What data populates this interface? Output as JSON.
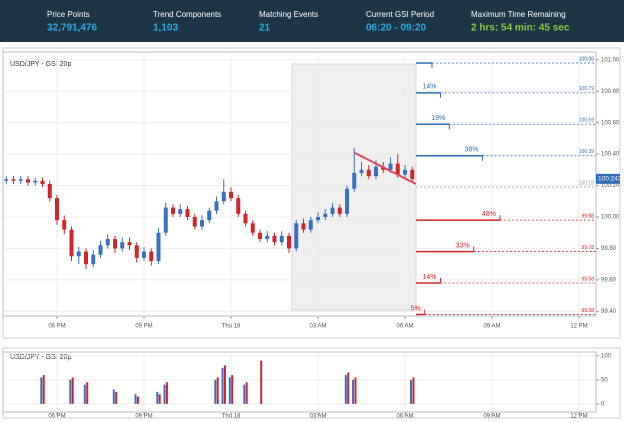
{
  "header": {
    "stats": [
      {
        "label": "Price Points",
        "value": "32,791,476",
        "color": "#2aa8e0"
      },
      {
        "label": "Trend Components",
        "value": "1,103",
        "color": "#2aa8e0"
      },
      {
        "label": "Matching Events",
        "value": "21",
        "color": "#2aa8e0"
      },
      {
        "label": "Current GSI Period",
        "value": "06:20 - 09:20",
        "color": "#2aa8e0"
      },
      {
        "label": "Maximum Time Remaining",
        "value": "2 hrs: 54 min: 45 sec",
        "color": "#8dc63f"
      }
    ]
  },
  "chart_data": [
    {
      "type": "candlestick",
      "title": "USD/JPY - GSI 20p",
      "categories": [
        null,
        null,
        null,
        null,
        null,
        null,
        null,
        "06 PM",
        null,
        null,
        null,
        null,
        null,
        null,
        null,
        null,
        null,
        null,
        null,
        "09 PM",
        null,
        null,
        null,
        null,
        null,
        null,
        null,
        null,
        null,
        null,
        null,
        "Thu 18",
        null,
        null,
        null,
        null,
        null,
        null,
        null,
        null,
        null,
        null,
        null,
        "03 AM",
        null,
        null,
        null,
        null,
        null,
        null,
        null,
        null,
        null,
        null,
        null,
        "06 AM",
        null,
        null,
        null,
        null,
        null,
        null,
        null,
        null,
        null,
        null,
        null,
        "09 AM",
        null,
        null,
        null,
        null,
        null,
        null,
        null,
        null,
        null,
        null,
        null,
        "12 PM",
        null
      ],
      "open": [
        100.23,
        100.24,
        100.23,
        100.24,
        100.22,
        100.23,
        100.21,
        100.12,
        99.98,
        99.92,
        99.75,
        99.78,
        99.7,
        99.76,
        99.82,
        99.86,
        99.8,
        99.84,
        99.82,
        99.74,
        99.78,
        99.72,
        99.9,
        100.06,
        100.02,
        100.05,
        100.0,
        99.94,
        99.98,
        100.04,
        100.1,
        100.16,
        100.12,
        100.02,
        99.96,
        99.9,
        99.86,
        99.88,
        99.84,
        99.88,
        99.8,
        99.96,
        99.92,
        99.98,
        100.0,
        100.02,
        100.06,
        100.02,
        100.18,
        100.28,
        100.3,
        100.26,
        100.32,
        100.3,
        100.34,
        100.27,
        100.3,
        null,
        null,
        null,
        null,
        null,
        null,
        null,
        null,
        null,
        null,
        null,
        null,
        null,
        null,
        null,
        null,
        null,
        null,
        null,
        null,
        null,
        null,
        null,
        null
      ],
      "high": [
        100.26,
        100.26,
        100.26,
        100.26,
        100.25,
        100.25,
        100.23,
        100.14,
        100.01,
        99.94,
        99.81,
        99.8,
        99.79,
        99.85,
        99.89,
        99.88,
        99.87,
        99.87,
        99.84,
        99.81,
        99.8,
        99.93,
        100.09,
        100.08,
        100.08,
        100.07,
        100.02,
        100.01,
        100.06,
        100.13,
        100.24,
        100.19,
        100.14,
        100.04,
        99.98,
        99.92,
        99.91,
        99.9,
        99.91,
        99.9,
        99.98,
        99.99,
        100.0,
        100.03,
        100.05,
        100.09,
        100.08,
        100.2,
        100.44,
        100.35,
        100.33,
        100.36,
        100.35,
        100.38,
        100.4,
        100.33,
        100.32,
        null,
        null,
        null,
        null,
        null,
        null,
        null,
        null,
        null,
        null,
        null,
        null,
        null,
        null,
        null,
        null,
        null,
        null,
        null,
        null,
        null,
        null,
        null,
        null
      ],
      "low": [
        100.21,
        100.21,
        100.21,
        100.2,
        100.2,
        100.19,
        100.1,
        99.95,
        99.89,
        99.72,
        99.7,
        99.67,
        99.68,
        99.74,
        99.8,
        99.77,
        99.78,
        99.79,
        99.71,
        99.72,
        99.69,
        99.7,
        99.88,
        100.0,
        100.0,
        99.98,
        99.92,
        99.92,
        99.96,
        100.02,
        100.08,
        100.1,
        100.0,
        99.94,
        99.88,
        99.84,
        99.84,
        99.82,
        99.82,
        99.77,
        99.78,
        99.9,
        99.9,
        99.96,
        99.98,
        100.0,
        100.0,
        100.0,
        100.16,
        100.26,
        100.24,
        100.24,
        100.28,
        100.28,
        100.25,
        100.25,
        100.22,
        null,
        null,
        null,
        null,
        null,
        null,
        null,
        null,
        null,
        null,
        null,
        null,
        null,
        null,
        null,
        null,
        null,
        null,
        null,
        null,
        null,
        null,
        null,
        null
      ],
      "close": [
        100.24,
        100.23,
        100.24,
        100.22,
        100.23,
        100.21,
        100.12,
        99.98,
        99.92,
        99.75,
        99.78,
        99.7,
        99.76,
        99.82,
        99.86,
        99.8,
        99.84,
        99.82,
        99.74,
        99.78,
        99.72,
        99.9,
        100.06,
        100.02,
        100.05,
        100.0,
        99.94,
        99.98,
        100.04,
        100.1,
        100.16,
        100.12,
        100.02,
        99.96,
        99.9,
        99.86,
        99.88,
        99.84,
        99.88,
        99.8,
        99.96,
        99.92,
        99.98,
        100.0,
        100.02,
        100.06,
        100.02,
        100.18,
        100.28,
        100.3,
        100.26,
        100.32,
        100.3,
        100.34,
        100.27,
        100.3,
        100.243,
        null,
        null,
        null,
        null,
        null,
        null,
        null,
        null,
        null,
        null,
        null,
        null,
        null,
        null,
        null,
        null,
        null,
        null,
        null,
        null,
        null,
        null,
        null,
        null
      ],
      "up_color": "#3b6fc0",
      "down_color": "#d0262b",
      "ylim": [
        99.37,
        101.05
      ],
      "yticks": [
        {
          "value": 99.4,
          "label": "99.40"
        },
        {
          "value": 99.6,
          "label": "99.60"
        },
        {
          "value": 99.8,
          "label": "99.80"
        },
        {
          "value": 100,
          "label": "100.00"
        },
        {
          "value": 100.2,
          "label": "100.20"
        },
        {
          "value": 100.4,
          "label": "100.40"
        },
        {
          "value": 100.6,
          "label": "100.60"
        },
        {
          "value": 100.8,
          "label": "100.80"
        },
        {
          "value": 101,
          "label": "101.00"
        }
      ],
      "grid": true,
      "last_price": 100.243,
      "reference_level": 100.19,
      "projections": {
        "values": [
          null,
          14,
          19,
          38,
          48,
          33,
          14,
          5
        ],
        "value_labels": [
          null,
          "14%",
          "19%",
          "38%",
          "48%",
          "33%",
          "14%",
          "5%"
        ],
        "levels": [
          100.98,
          100.79,
          100.59,
          100.39,
          99.98,
          99.78,
          99.58,
          99.38
        ],
        "colors": [
          "#2f6db5",
          "#2f6db5",
          "#2f6db5",
          "#2f6db5",
          "#d0262b",
          "#d0262b",
          "#d0262b",
          "#d0262b"
        ]
      }
    },
    {
      "type": "bar",
      "title": "USD/JPY - GSI 20p",
      "categories": [
        null,
        null,
        null,
        null,
        null,
        null,
        null,
        "06 PM",
        null,
        null,
        null,
        null,
        null,
        null,
        null,
        null,
        null,
        null,
        null,
        "09 PM",
        null,
        null,
        null,
        null,
        null,
        null,
        null,
        null,
        null,
        null,
        null,
        "Thu 18",
        null,
        null,
        null,
        null,
        null,
        null,
        null,
        null,
        null,
        null,
        null,
        "03 AM",
        null,
        null,
        null,
        null,
        null,
        null,
        null,
        null,
        null,
        null,
        null,
        "06 AM",
        null,
        null,
        null,
        null,
        null,
        null,
        null,
        null,
        null,
        null,
        null,
        "09 AM",
        null,
        null,
        null,
        null,
        null,
        null,
        null,
        null,
        null,
        null,
        null,
        "12 PM",
        null
      ],
      "series": [
        {
          "color": "#3b6fc0",
          "values": [
            null,
            null,
            null,
            null,
            null,
            55,
            null,
            null,
            null,
            50,
            null,
            40,
            null,
            null,
            null,
            30,
            null,
            null,
            20,
            null,
            null,
            25,
            40,
            null,
            null,
            null,
            null,
            null,
            null,
            50,
            75,
            55,
            null,
            40,
            null,
            null,
            null,
            null,
            null,
            null,
            null,
            null,
            null,
            null,
            null,
            null,
            null,
            60,
            50,
            null,
            null,
            null,
            null,
            null,
            null,
            null,
            50,
            null,
            null,
            null,
            null,
            null,
            null,
            null,
            null,
            null,
            null,
            null,
            null,
            null,
            null,
            null,
            null,
            null,
            null,
            null,
            null,
            null,
            null,
            null,
            null
          ]
        },
        {
          "color": "#d0262b",
          "values": [
            null,
            null,
            null,
            null,
            null,
            60,
            null,
            null,
            null,
            55,
            null,
            45,
            null,
            null,
            null,
            25,
            null,
            null,
            15,
            null,
            null,
            20,
            45,
            null,
            null,
            null,
            null,
            null,
            null,
            55,
            80,
            60,
            null,
            45,
            null,
            90,
            null,
            null,
            null,
            null,
            null,
            null,
            null,
            null,
            null,
            null,
            null,
            65,
            55,
            null,
            null,
            null,
            null,
            null,
            null,
            null,
            55,
            null,
            null,
            null,
            null,
            null,
            null,
            null,
            null,
            null,
            null,
            null,
            null,
            null,
            null,
            null,
            null,
            null,
            null,
            null,
            null,
            null,
            null,
            null,
            null
          ]
        }
      ],
      "ylim": [
        -17,
        108
      ],
      "yticks": [
        0,
        50,
        100
      ],
      "grid": true
    }
  ]
}
